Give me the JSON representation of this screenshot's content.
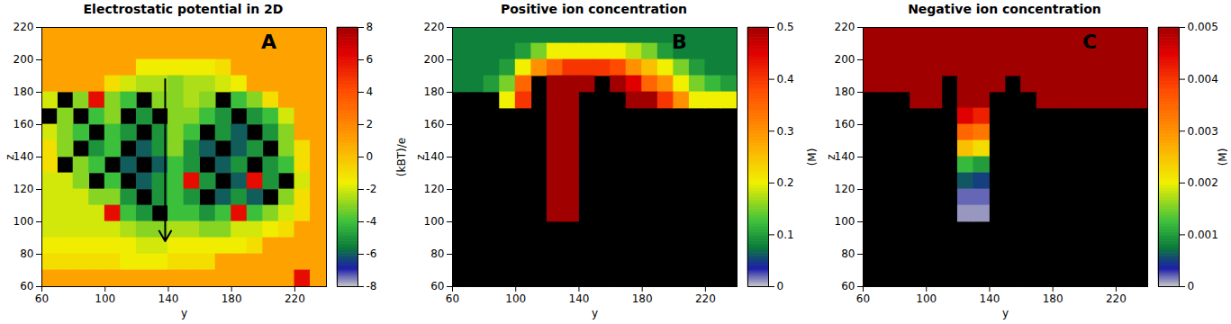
{
  "chart_data": [
    {
      "type": "heatmap",
      "title": "Electrostatic potential in 2D",
      "panel_label": "A",
      "xlabel": "y",
      "ylabel": "z",
      "xlim": [
        60,
        240
      ],
      "ylim": [
        60,
        220
      ],
      "xticks": [
        60,
        100,
        140,
        180,
        220
      ],
      "yticks": [
        60,
        80,
        100,
        120,
        140,
        160,
        180,
        200,
        220
      ],
      "colorbar_label": "(kBT)/e",
      "clim": [
        -8,
        8
      ],
      "cticks": [
        -8,
        -6,
        -4,
        -2,
        0,
        2,
        4,
        6,
        8
      ],
      "arrow": {
        "x": 138,
        "y_from": 188,
        "y_to": 88
      },
      "x": [
        65,
        75,
        85,
        95,
        105,
        115,
        125,
        135,
        145,
        155,
        165,
        175,
        185,
        195,
        205,
        215,
        225,
        235
      ],
      "y": [
        215,
        205,
        195,
        185,
        175,
        165,
        155,
        145,
        135,
        125,
        115,
        105,
        95,
        85,
        75,
        65
      ],
      "cells": [
        [
          1,
          1,
          1,
          1,
          1,
          1,
          1,
          1,
          1,
          1,
          1,
          1,
          1,
          1,
          1,
          1,
          1,
          1
        ],
        [
          1,
          1,
          1,
          1,
          1,
          1,
          1,
          1,
          1,
          1,
          1,
          1,
          1,
          1,
          1,
          1,
          1,
          1
        ],
        [
          1,
          1,
          1,
          1,
          1,
          1,
          -1.5,
          -1.5,
          -1.5,
          -1.5,
          -1.5,
          -1,
          1,
          1,
          1,
          1,
          1,
          1
        ],
        [
          1,
          1,
          1,
          1,
          -1,
          -2,
          -2.5,
          -2.5,
          -3,
          -2.5,
          -2.5,
          -2,
          -1.5,
          1,
          1,
          1,
          1,
          1
        ],
        [
          -2,
          null,
          -3,
          6,
          -3,
          -4,
          null,
          -3,
          -3,
          -2.5,
          -3,
          null,
          -4,
          -3,
          -1,
          1,
          1,
          1
        ],
        [
          null,
          -3,
          null,
          -4,
          -3,
          null,
          -5,
          null,
          -3,
          -3,
          -4,
          -5,
          null,
          -5,
          -4,
          -2,
          1,
          1
        ],
        [
          -2,
          -3,
          -4,
          null,
          -4,
          -5,
          null,
          -5,
          -3,
          -4,
          null,
          -5,
          -6,
          null,
          -5,
          -3,
          1,
          1
        ],
        [
          -1,
          -3,
          null,
          -5,
          -4,
          null,
          -6,
          -5,
          -3,
          -5,
          -6,
          null,
          -6,
          -5,
          null,
          -3,
          -1,
          1
        ],
        [
          -1,
          null,
          -3,
          -4,
          null,
          -6,
          null,
          -6,
          -4,
          -5,
          null,
          -6,
          -5,
          null,
          -5,
          -4,
          -1,
          1
        ],
        [
          -2,
          -2,
          -3,
          null,
          -4,
          null,
          -6,
          -5,
          -4,
          6,
          -5,
          null,
          -6,
          6,
          -5,
          null,
          -2,
          1
        ],
        [
          -2,
          -2,
          -2,
          -3,
          -3,
          -5,
          null,
          -5,
          -4,
          -5,
          null,
          -6,
          -5,
          -6,
          null,
          -3,
          -1,
          1
        ],
        [
          -2,
          -2,
          -2,
          -2,
          6,
          -4,
          -5,
          null,
          -4,
          -4,
          -5,
          -4,
          6,
          -4,
          -3,
          -2,
          -1,
          1
        ],
        [
          -2,
          -2,
          -2,
          -2,
          -2,
          -2.5,
          -3,
          -3,
          -2.5,
          -2.5,
          -3,
          -3,
          -2,
          -2,
          -1.5,
          -1,
          1,
          1
        ],
        [
          -1.5,
          -1.5,
          -1.5,
          -1.5,
          -1.5,
          -1.5,
          -2,
          -2,
          -1.5,
          -1.5,
          -1.5,
          -1.5,
          -1.5,
          -1,
          1,
          1,
          1,
          1
        ],
        [
          -1,
          -1,
          -1,
          -1,
          -1,
          -1.5,
          -1.5,
          -1.5,
          -1,
          -1,
          -1,
          1,
          1,
          1,
          1,
          1,
          1,
          1
        ],
        [
          1,
          1,
          1,
          1,
          1,
          1,
          1,
          1,
          1,
          1,
          1,
          1,
          1,
          1,
          1,
          1,
          6,
          1
        ]
      ]
    },
    {
      "type": "heatmap",
      "title": "Positive ion concentration",
      "panel_label": "B",
      "xlabel": "y",
      "ylabel": "z",
      "xlim": [
        60,
        240
      ],
      "ylim": [
        60,
        220
      ],
      "xticks": [
        60,
        100,
        140,
        180,
        220
      ],
      "yticks": [
        60,
        80,
        100,
        120,
        140,
        160,
        180,
        200,
        220
      ],
      "colorbar_label": "(M)",
      "clim": [
        0,
        0.5
      ],
      "cticks": [
        0,
        0.1,
        0.2,
        0.3,
        0.4,
        0.5
      ],
      "x": [
        65,
        75,
        85,
        95,
        105,
        115,
        125,
        135,
        145,
        155,
        165,
        175,
        185,
        195,
        205,
        215,
        225,
        235
      ],
      "y": [
        215,
        205,
        195,
        185,
        175,
        165,
        155,
        145,
        135,
        125,
        115,
        105,
        95,
        85,
        75,
        65
      ],
      "cells": [
        [
          0.08,
          0.08,
          0.08,
          0.08,
          0.08,
          0.08,
          0.08,
          0.08,
          0.08,
          0.08,
          0.08,
          0.08,
          0.08,
          0.08,
          0.08,
          0.08,
          0.08,
          0.08
        ],
        [
          0.08,
          0.08,
          0.08,
          0.08,
          0.1,
          0.15,
          0.2,
          0.2,
          0.2,
          0.2,
          0.2,
          0.18,
          0.15,
          0.1,
          0.08,
          0.08,
          0.08,
          0.08
        ],
        [
          0.08,
          0.08,
          0.08,
          0.1,
          0.2,
          0.3,
          0.35,
          0.4,
          0.4,
          0.4,
          0.38,
          0.3,
          0.25,
          0.2,
          0.15,
          0.1,
          0.08,
          0.08
        ],
        [
          0.08,
          0.08,
          0.1,
          0.15,
          0.35,
          null,
          0.5,
          0.5,
          0.5,
          null,
          0.5,
          0.45,
          0.35,
          0.3,
          0.2,
          0.15,
          0.12,
          0.1
        ],
        [
          null,
          null,
          null,
          0.2,
          0.4,
          null,
          0.5,
          0.5,
          null,
          null,
          null,
          0.5,
          0.5,
          0.4,
          0.3,
          0.2,
          0.2,
          0.2
        ],
        [
          null,
          null,
          null,
          null,
          null,
          null,
          0.5,
          0.5,
          null,
          null,
          null,
          null,
          null,
          null,
          null,
          null,
          null,
          null
        ],
        [
          null,
          null,
          null,
          null,
          null,
          null,
          0.5,
          0.5,
          null,
          null,
          null,
          null,
          null,
          null,
          null,
          null,
          null,
          null
        ],
        [
          null,
          null,
          null,
          null,
          null,
          null,
          0.5,
          0.5,
          null,
          null,
          null,
          null,
          null,
          null,
          null,
          null,
          null,
          null
        ],
        [
          null,
          null,
          null,
          null,
          null,
          null,
          0.5,
          0.5,
          null,
          null,
          null,
          null,
          null,
          null,
          null,
          null,
          null,
          null
        ],
        [
          null,
          null,
          null,
          null,
          null,
          null,
          0.5,
          0.5,
          null,
          null,
          null,
          null,
          null,
          null,
          null,
          null,
          null,
          null
        ],
        [
          null,
          null,
          null,
          null,
          null,
          null,
          0.5,
          0.5,
          null,
          null,
          null,
          null,
          null,
          null,
          null,
          null,
          null,
          null
        ],
        [
          null,
          null,
          null,
          null,
          null,
          null,
          0.5,
          0.5,
          null,
          null,
          null,
          null,
          null,
          null,
          null,
          null,
          null,
          null
        ],
        [
          null,
          null,
          null,
          null,
          null,
          null,
          null,
          null,
          null,
          null,
          null,
          null,
          null,
          null,
          null,
          null,
          null,
          null
        ],
        [
          null,
          null,
          null,
          null,
          null,
          null,
          null,
          null,
          null,
          null,
          null,
          null,
          null,
          null,
          null,
          null,
          null,
          null
        ],
        [
          null,
          null,
          null,
          null,
          null,
          null,
          null,
          null,
          null,
          null,
          null,
          null,
          null,
          null,
          null,
          null,
          null,
          null
        ],
        [
          null,
          null,
          null,
          null,
          null,
          null,
          null,
          null,
          null,
          null,
          null,
          null,
          null,
          null,
          null,
          null,
          null,
          null
        ]
      ]
    },
    {
      "type": "heatmap",
      "title": "Negative ion concentration",
      "panel_label": "C",
      "xlabel": "y",
      "ylabel": "z",
      "xlim": [
        60,
        240
      ],
      "ylim": [
        60,
        220
      ],
      "xticks": [
        60,
        100,
        140,
        180,
        220
      ],
      "yticks": [
        60,
        80,
        100,
        120,
        140,
        160,
        180,
        200,
        220
      ],
      "colorbar_label": "(M)",
      "clim": [
        0,
        0.005
      ],
      "cticks": [
        0,
        0.001,
        0.002,
        0.003,
        0.004,
        0.005
      ],
      "x": [
        65,
        75,
        85,
        95,
        105,
        115,
        125,
        135,
        145,
        155,
        165,
        175,
        185,
        195,
        205,
        215,
        225,
        235
      ],
      "y": [
        215,
        205,
        195,
        185,
        175,
        165,
        155,
        145,
        135,
        125,
        115,
        105,
        95,
        85,
        75,
        65
      ],
      "cells": [
        [
          0.005,
          0.005,
          0.005,
          0.005,
          0.005,
          0.005,
          0.005,
          0.005,
          0.005,
          0.005,
          0.005,
          0.005,
          0.005,
          0.005,
          0.005,
          0.005,
          0.005,
          0.005
        ],
        [
          0.005,
          0.005,
          0.005,
          0.005,
          0.005,
          0.005,
          0.005,
          0.005,
          0.005,
          0.005,
          0.005,
          0.005,
          0.005,
          0.005,
          0.005,
          0.005,
          0.005,
          0.005
        ],
        [
          0.005,
          0.005,
          0.005,
          0.005,
          0.005,
          0.005,
          0.005,
          0.005,
          0.005,
          0.005,
          0.005,
          0.005,
          0.005,
          0.005,
          0.005,
          0.005,
          0.005,
          0.005
        ],
        [
          0.005,
          0.005,
          0.005,
          0.005,
          0.005,
          null,
          0.005,
          0.005,
          0.005,
          null,
          0.005,
          0.005,
          0.005,
          0.005,
          0.005,
          0.005,
          0.005,
          0.005
        ],
        [
          null,
          null,
          null,
          0.005,
          0.005,
          null,
          0.005,
          0.005,
          null,
          null,
          null,
          0.005,
          0.005,
          0.005,
          0.005,
          0.005,
          0.005,
          0.005
        ],
        [
          null,
          null,
          null,
          null,
          null,
          null,
          0.0045,
          0.0042,
          null,
          null,
          null,
          null,
          null,
          null,
          null,
          null,
          null,
          null
        ],
        [
          null,
          null,
          null,
          null,
          null,
          null,
          0.0035,
          0.0033,
          null,
          null,
          null,
          null,
          null,
          null,
          null,
          null,
          null,
          null
        ],
        [
          null,
          null,
          null,
          null,
          null,
          null,
          0.0025,
          0.0022,
          null,
          null,
          null,
          null,
          null,
          null,
          null,
          null,
          null,
          null
        ],
        [
          null,
          null,
          null,
          null,
          null,
          null,
          0.0012,
          0.001,
          null,
          null,
          null,
          null,
          null,
          null,
          null,
          null,
          null,
          null
        ],
        [
          null,
          null,
          null,
          null,
          null,
          null,
          0.0006,
          0.0005,
          null,
          null,
          null,
          null,
          null,
          null,
          null,
          null,
          null,
          null
        ],
        [
          null,
          null,
          null,
          null,
          null,
          null,
          0.0002,
          0.0002,
          null,
          null,
          null,
          null,
          null,
          null,
          null,
          null,
          null,
          null
        ],
        [
          null,
          null,
          null,
          null,
          null,
          null,
          0.0001,
          0.0001,
          null,
          null,
          null,
          null,
          null,
          null,
          null,
          null,
          null,
          null
        ],
        [
          null,
          null,
          null,
          null,
          null,
          null,
          null,
          null,
          null,
          null,
          null,
          null,
          null,
          null,
          null,
          null,
          null,
          null
        ],
        [
          null,
          null,
          null,
          null,
          null,
          null,
          null,
          null,
          null,
          null,
          null,
          null,
          null,
          null,
          null,
          null,
          null,
          null
        ],
        [
          null,
          null,
          null,
          null,
          null,
          null,
          null,
          null,
          null,
          null,
          null,
          null,
          null,
          null,
          null,
          null,
          null,
          null
        ],
        [
          null,
          null,
          null,
          null,
          null,
          null,
          null,
          null,
          null,
          null,
          null,
          null,
          null,
          null,
          null,
          null,
          null,
          null
        ]
      ]
    }
  ]
}
